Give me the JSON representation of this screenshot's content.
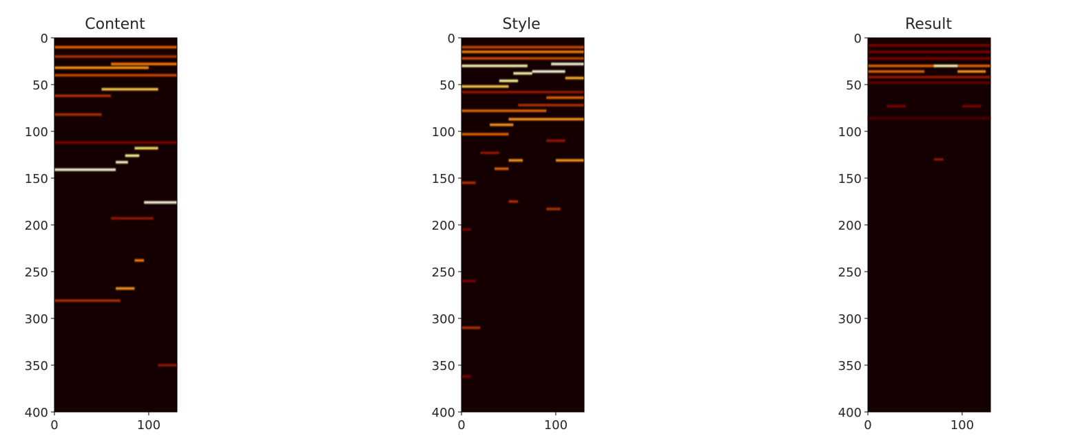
{
  "chart_data": [
    {
      "type": "heatmap",
      "title": "Content",
      "xlabel": "",
      "ylabel": "",
      "xlim": [
        0,
        130
      ],
      "ylim": [
        400,
        0
      ],
      "xticks": [
        0,
        100
      ],
      "yticks": [
        0,
        50,
        100,
        150,
        200,
        250,
        300,
        350,
        400
      ],
      "colormap": "afmhot",
      "features": [
        {
          "y": 10,
          "x0": 0,
          "x1": 130,
          "v": 0.45
        },
        {
          "y": 20,
          "x0": 0,
          "x1": 130,
          "v": 0.35
        },
        {
          "y": 28,
          "x0": 60,
          "x1": 130,
          "v": 0.5
        },
        {
          "y": 32,
          "x0": 0,
          "x1": 100,
          "v": 0.55
        },
        {
          "y": 40,
          "x0": 0,
          "x1": 130,
          "v": 0.4
        },
        {
          "y": 55,
          "x0": 50,
          "x1": 110,
          "v": 0.65
        },
        {
          "y": 62,
          "x0": 0,
          "x1": 60,
          "v": 0.35
        },
        {
          "y": 82,
          "x0": 0,
          "x1": 50,
          "v": 0.35
        },
        {
          "y": 112,
          "x0": 0,
          "x1": 130,
          "v": 0.25
        },
        {
          "y": 118,
          "x0": 85,
          "x1": 110,
          "v": 0.7
        },
        {
          "y": 126,
          "x0": 75,
          "x1": 90,
          "v": 0.8
        },
        {
          "y": 133,
          "x0": 65,
          "x1": 78,
          "v": 0.9
        },
        {
          "y": 141,
          "x0": 0,
          "x1": 65,
          "v": 0.95
        },
        {
          "y": 176,
          "x0": 95,
          "x1": 130,
          "v": 0.95
        },
        {
          "y": 193,
          "x0": 60,
          "x1": 105,
          "v": 0.3
        },
        {
          "y": 238,
          "x0": 85,
          "x1": 95,
          "v": 0.5
        },
        {
          "y": 268,
          "x0": 65,
          "x1": 85,
          "v": 0.55
        },
        {
          "y": 281,
          "x0": 0,
          "x1": 70,
          "v": 0.35
        },
        {
          "y": 350,
          "x0": 110,
          "x1": 130,
          "v": 0.3
        }
      ]
    },
    {
      "type": "heatmap",
      "title": "Style",
      "xlabel": "",
      "ylabel": "",
      "xlim": [
        0,
        130
      ],
      "ylim": [
        400,
        0
      ],
      "xticks": [
        0,
        100
      ],
      "yticks": [
        0,
        50,
        100,
        150,
        200,
        250,
        300,
        350,
        400
      ],
      "colormap": "afmhot",
      "features": [
        {
          "y": 10,
          "x0": 0,
          "x1": 130,
          "v": 0.4
        },
        {
          "y": 15,
          "x0": 0,
          "x1": 130,
          "v": 0.5
        },
        {
          "y": 22,
          "x0": 0,
          "x1": 130,
          "v": 0.4
        },
        {
          "y": 28,
          "x0": 95,
          "x1": 130,
          "v": 0.95
        },
        {
          "y": 30,
          "x0": 0,
          "x1": 70,
          "v": 0.85
        },
        {
          "y": 36,
          "x0": 75,
          "x1": 110,
          "v": 0.95
        },
        {
          "y": 38,
          "x0": 55,
          "x1": 75,
          "v": 0.85
        },
        {
          "y": 43,
          "x0": 110,
          "x1": 130,
          "v": 0.6
        },
        {
          "y": 46,
          "x0": 40,
          "x1": 60,
          "v": 0.8
        },
        {
          "y": 52,
          "x0": 0,
          "x1": 50,
          "v": 0.65
        },
        {
          "y": 58,
          "x0": 0,
          "x1": 130,
          "v": 0.3
        },
        {
          "y": 64,
          "x0": 90,
          "x1": 130,
          "v": 0.45
        },
        {
          "y": 72,
          "x0": 60,
          "x1": 130,
          "v": 0.35
        },
        {
          "y": 78,
          "x0": 0,
          "x1": 90,
          "v": 0.45
        },
        {
          "y": 87,
          "x0": 50,
          "x1": 130,
          "v": 0.55
        },
        {
          "y": 93,
          "x0": 30,
          "x1": 55,
          "v": 0.55
        },
        {
          "y": 103,
          "x0": 0,
          "x1": 50,
          "v": 0.45
        },
        {
          "y": 110,
          "x0": 90,
          "x1": 110,
          "v": 0.3
        },
        {
          "y": 123,
          "x0": 20,
          "x1": 40,
          "v": 0.3
        },
        {
          "y": 131,
          "x0": 50,
          "x1": 65,
          "v": 0.55
        },
        {
          "y": 131,
          "x0": 100,
          "x1": 130,
          "v": 0.55
        },
        {
          "y": 140,
          "x0": 35,
          "x1": 50,
          "v": 0.45
        },
        {
          "y": 155,
          "x0": 0,
          "x1": 15,
          "v": 0.35
        },
        {
          "y": 175,
          "x0": 50,
          "x1": 60,
          "v": 0.35
        },
        {
          "y": 183,
          "x0": 90,
          "x1": 105,
          "v": 0.35
        },
        {
          "y": 205,
          "x0": 0,
          "x1": 10,
          "v": 0.25
        },
        {
          "y": 260,
          "x0": 0,
          "x1": 15,
          "v": 0.25
        },
        {
          "y": 310,
          "x0": 0,
          "x1": 20,
          "v": 0.35
        },
        {
          "y": 362,
          "x0": 0,
          "x1": 10,
          "v": 0.25
        }
      ]
    },
    {
      "type": "heatmap",
      "title": "Result",
      "xlabel": "",
      "ylabel": "",
      "xlim": [
        0,
        130
      ],
      "ylim": [
        400,
        0
      ],
      "xticks": [
        0,
        100
      ],
      "yticks": [
        0,
        50,
        100,
        150,
        200,
        250,
        300,
        350,
        400
      ],
      "colormap": "afmhot",
      "features": [
        {
          "y": 8,
          "x0": 0,
          "x1": 130,
          "v": 0.25
        },
        {
          "y": 15,
          "x0": 0,
          "x1": 130,
          "v": 0.25
        },
        {
          "y": 22,
          "x0": 0,
          "x1": 130,
          "v": 0.25
        },
        {
          "y": 30,
          "x0": 0,
          "x1": 130,
          "v": 0.45
        },
        {
          "y": 30,
          "x0": 70,
          "x1": 95,
          "v": 0.85
        },
        {
          "y": 36,
          "x0": 0,
          "x1": 60,
          "v": 0.45
        },
        {
          "y": 36,
          "x0": 95,
          "x1": 125,
          "v": 0.55
        },
        {
          "y": 42,
          "x0": 0,
          "x1": 130,
          "v": 0.3
        },
        {
          "y": 48,
          "x0": 0,
          "x1": 130,
          "v": 0.2
        },
        {
          "y": 73,
          "x0": 20,
          "x1": 40,
          "v": 0.25
        },
        {
          "y": 73,
          "x0": 100,
          "x1": 120,
          "v": 0.25
        },
        {
          "y": 86,
          "x0": 0,
          "x1": 130,
          "v": 0.15
        },
        {
          "y": 130,
          "x0": 70,
          "x1": 80,
          "v": 0.3
        }
      ]
    }
  ]
}
